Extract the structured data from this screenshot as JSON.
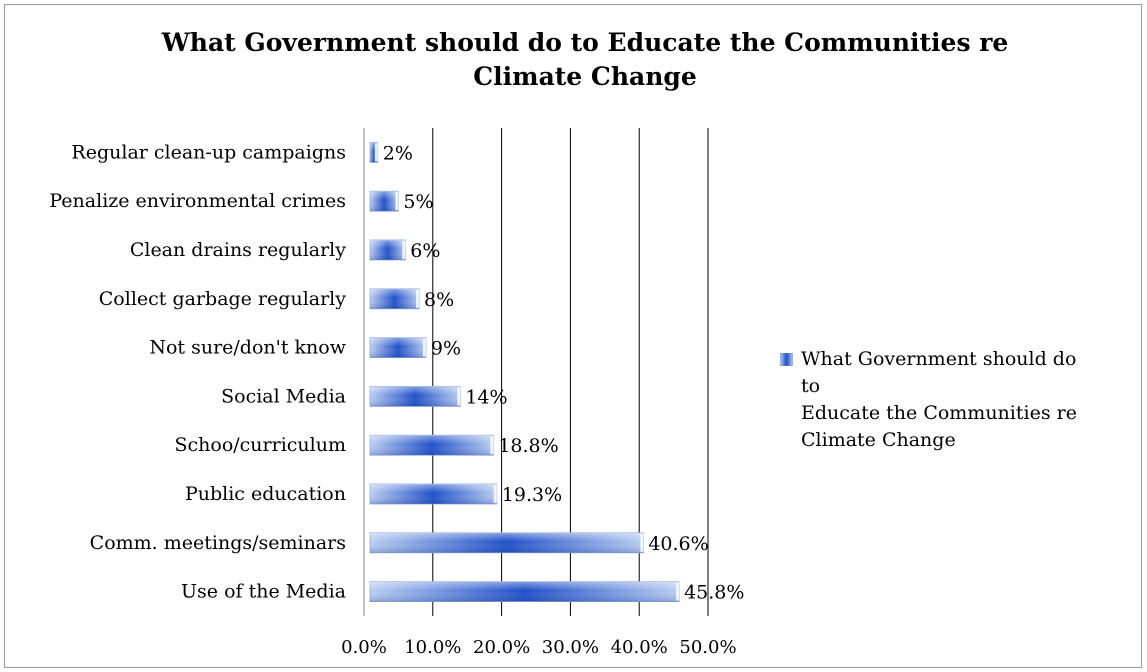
{
  "chart_data": {
    "type": "bar",
    "orientation": "horizontal",
    "title": "What Government should do to Educate the Communities re Climate Change",
    "title_lines": [
      "What Government should do to Educate the Communities re",
      "Climate Change"
    ],
    "categories": [
      "Regular clean-up campaigns",
      "Penalize environmental crimes",
      "Clean drains regularly",
      "Collect garbage regularly",
      "Not sure/don't know",
      "Social Media",
      "Schoo/curriculum",
      "Public education",
      "Comm. meetings/seminars",
      "Use of the Media"
    ],
    "series": [
      {
        "name": "What Government should do to Educate the Communities re Climate Change",
        "values": [
          2,
          5,
          6,
          8,
          9,
          14,
          18.8,
          19.3,
          40.6,
          45.8
        ],
        "labels": [
          "2%",
          "5%",
          "6%",
          "8%",
          "9%",
          "14%",
          "18.8%",
          "19.3%",
          "40.6%",
          "45.8%"
        ]
      }
    ],
    "xlim": [
      0,
      50
    ],
    "xticks": [
      "0.0%",
      "10.0%",
      "20.0%",
      "30.0%",
      "40.0%",
      "50.0%"
    ],
    "grid": "vertical",
    "legend_position": "right",
    "legend_lines": [
      "What Government should do to",
      "Educate the Communities re",
      "Climate Change"
    ],
    "colors": {
      "bar_dark": "#1f4fc8",
      "bar_light": "#a9c2ee",
      "grid": "#000000"
    }
  }
}
